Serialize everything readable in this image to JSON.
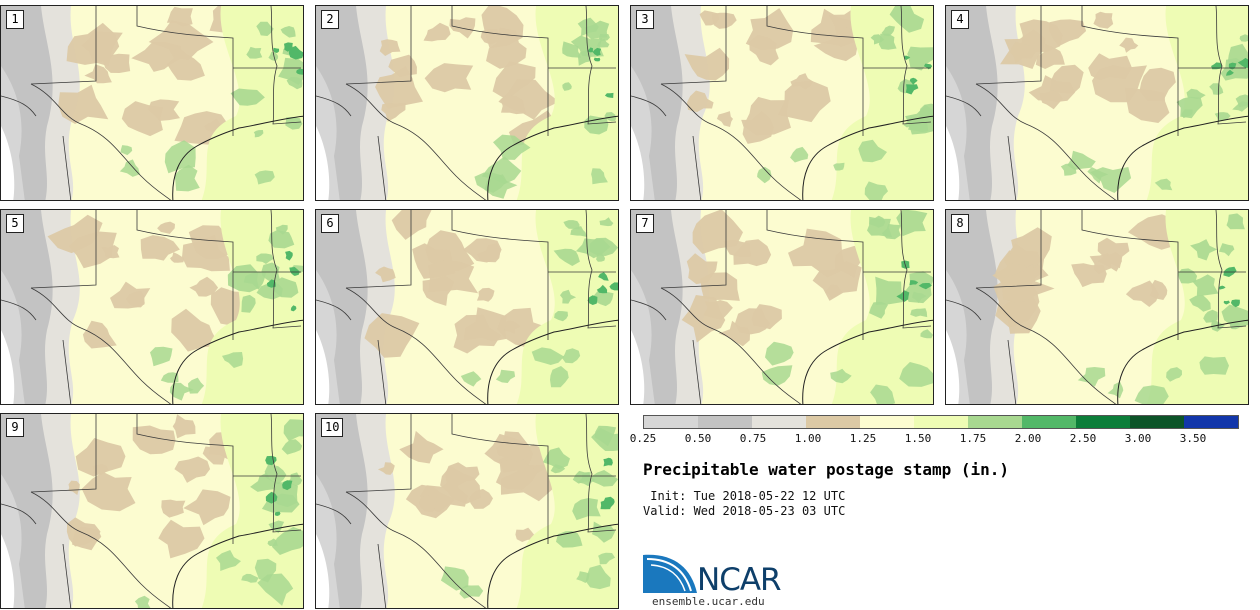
{
  "map": {
    "type": "ensemble postage stamp map",
    "variable": "Precipitable water",
    "units": "in.",
    "region": "Texas and surrounding southern US / northern Mexico",
    "stamps": [
      {
        "member": "1"
      },
      {
        "member": "2"
      },
      {
        "member": "3"
      },
      {
        "member": "4"
      },
      {
        "member": "5"
      },
      {
        "member": "6"
      },
      {
        "member": "7"
      },
      {
        "member": "8"
      },
      {
        "member": "9"
      },
      {
        "member": "10"
      }
    ]
  },
  "colorbar": {
    "colors": [
      "#ffffff",
      "#d6d6d6",
      "#c3c3c3",
      "#e4e2dc",
      "#dcc9a5",
      "#fcfcd0",
      "#eefcb4",
      "#a8d890",
      "#52b868",
      "#0c7e3a",
      "#0c5428",
      "#1236aa"
    ],
    "labels": [
      "0.25",
      "0.50",
      "0.75",
      "1.00",
      "1.25",
      "1.50",
      "1.75",
      "2.00",
      "2.50",
      "3.00",
      "3.50"
    ]
  },
  "title": "Precipitable water postage stamp (in.)",
  "init_line": " Init: Tue 2018-05-22 12 UTC",
  "valid_line": "Valid: Wed 2018-05-23 03 UTC",
  "logo": {
    "name": "NCAR",
    "url": "ensemble.ucar.edu",
    "colors": {
      "wave": "#1a78be",
      "text": "#0e3f6a"
    }
  }
}
